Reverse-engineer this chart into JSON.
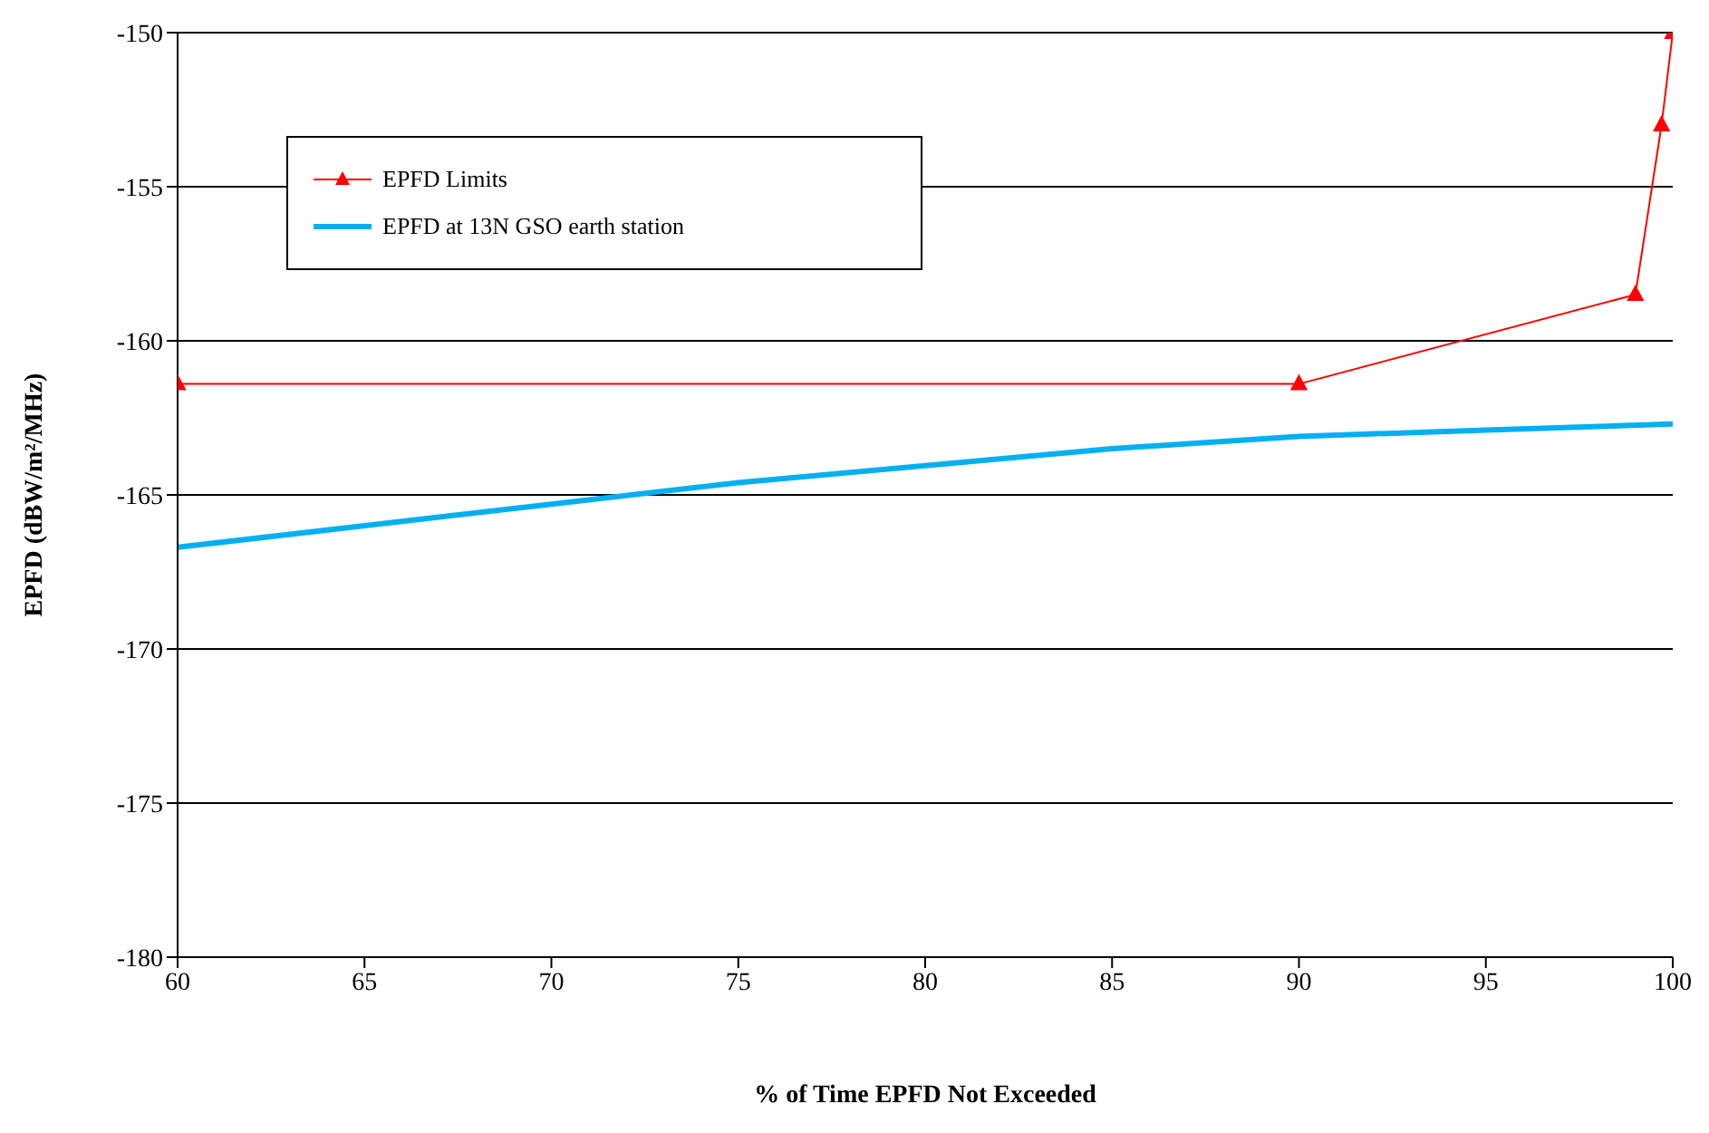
{
  "chart_data": {
    "type": "line",
    "xlabel": "% of Time EPFD Not Exceeded",
    "ylabel": "EPFD (dBW/m²/MHz)",
    "xlim": [
      60,
      100
    ],
    "xticks": [
      60,
      65,
      70,
      75,
      80,
      85,
      90,
      95,
      100
    ],
    "ylim": [
      -180,
      -150
    ],
    "yticks": [
      -180,
      -175,
      -170,
      -165,
      -160,
      -155,
      -150
    ],
    "grid": "y",
    "legend": "top left",
    "series": [
      {
        "name": "EPFD Limits",
        "color": "#ff0000",
        "marker": "triangle",
        "x": [
          60,
          90,
          99,
          99.7,
          100
        ],
        "values": [
          -161.4,
          -161.4,
          -158.5,
          -153,
          -150
        ]
      },
      {
        "name": "EPFD at 13N GSO earth station",
        "color": "#00b0f0",
        "marker": "none",
        "x": [
          60,
          65,
          70,
          75,
          80,
          85,
          90,
          95,
          100
        ],
        "values": [
          -166.7,
          -166.0,
          -165.3,
          -164.6,
          -164.05,
          -163.5,
          -163.1,
          -162.9,
          -162.7
        ]
      }
    ]
  }
}
